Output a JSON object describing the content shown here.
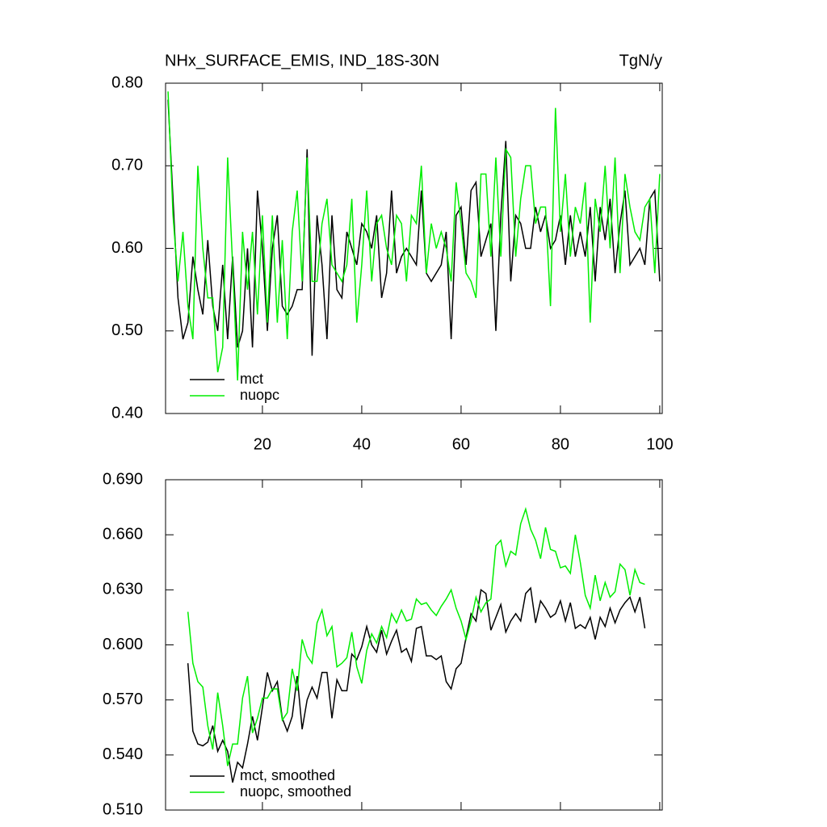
{
  "chart_data": [
    {
      "type": "line",
      "title": "NHx_SURFACE_EMIS, IND_18S-30N",
      "units": "TgN/y",
      "x": [
        1,
        2,
        3,
        4,
        5,
        6,
        7,
        8,
        9,
        10,
        11,
        12,
        13,
        14,
        15,
        16,
        17,
        18,
        19,
        20,
        21,
        22,
        23,
        24,
        25,
        26,
        27,
        28,
        29,
        30,
        31,
        32,
        33,
        34,
        35,
        36,
        37,
        38,
        39,
        40,
        41,
        42,
        43,
        44,
        45,
        46,
        47,
        48,
        49,
        50,
        51,
        52,
        53,
        54,
        55,
        56,
        57,
        58,
        59,
        60,
        61,
        62,
        63,
        64,
        65,
        66,
        67,
        68,
        69,
        70,
        71,
        72,
        73,
        74,
        75,
        76,
        77,
        78,
        79,
        80,
        81,
        82,
        83,
        84,
        85,
        86,
        87,
        88,
        89,
        90,
        91,
        92,
        93,
        94,
        95,
        96,
        97,
        98,
        99,
        100
      ],
      "series": [
        {
          "name": "mct",
          "color": "#000000",
          "values": [
            0.78,
            0.66,
            0.54,
            0.49,
            0.51,
            0.59,
            0.55,
            0.52,
            0.61,
            0.53,
            0.5,
            0.58,
            0.49,
            0.59,
            0.48,
            0.5,
            0.6,
            0.48,
            0.67,
            0.6,
            0.5,
            0.6,
            0.64,
            0.53,
            0.52,
            0.53,
            0.55,
            0.55,
            0.72,
            0.47,
            0.64,
            0.58,
            0.49,
            0.64,
            0.55,
            0.54,
            0.62,
            0.6,
            0.58,
            0.63,
            0.62,
            0.6,
            0.64,
            0.54,
            0.57,
            0.67,
            0.57,
            0.59,
            0.6,
            0.59,
            0.58,
            0.67,
            0.57,
            0.56,
            0.57,
            0.58,
            0.62,
            0.49,
            0.64,
            0.65,
            0.58,
            0.67,
            0.68,
            0.59,
            0.61,
            0.63,
            0.5,
            0.64,
            0.73,
            0.56,
            0.64,
            0.63,
            0.6,
            0.6,
            0.65,
            0.62,
            0.64,
            0.6,
            0.61,
            0.64,
            0.58,
            0.64,
            0.59,
            0.62,
            0.59,
            0.65,
            0.56,
            0.65,
            0.61,
            0.66,
            0.57,
            0.63,
            0.67,
            0.58,
            0.59,
            0.6,
            0.58,
            0.66,
            0.67,
            0.56
          ]
        },
        {
          "name": "nuopc",
          "color": "#00ee00",
          "values": [
            0.79,
            0.64,
            0.56,
            0.62,
            0.53,
            0.49,
            0.7,
            0.6,
            0.54,
            0.54,
            0.45,
            0.48,
            0.71,
            0.58,
            0.44,
            0.62,
            0.55,
            0.62,
            0.52,
            0.64,
            0.51,
            0.64,
            0.51,
            0.61,
            0.49,
            0.62,
            0.67,
            0.56,
            0.71,
            0.56,
            0.56,
            0.63,
            0.66,
            0.58,
            0.57,
            0.56,
            0.58,
            0.66,
            0.51,
            0.58,
            0.67,
            0.56,
            0.63,
            0.64,
            0.6,
            0.58,
            0.64,
            0.63,
            0.56,
            0.64,
            0.63,
            0.7,
            0.57,
            0.63,
            0.6,
            0.62,
            0.6,
            0.56,
            0.68,
            0.63,
            0.57,
            0.56,
            0.54,
            0.69,
            0.69,
            0.59,
            0.71,
            0.59,
            0.72,
            0.71,
            0.59,
            0.66,
            0.7,
            0.7,
            0.63,
            0.65,
            0.65,
            0.53,
            0.77,
            0.62,
            0.69,
            0.59,
            0.65,
            0.63,
            0.68,
            0.51,
            0.66,
            0.62,
            0.7,
            0.6,
            0.71,
            0.57,
            0.69,
            0.65,
            0.62,
            0.61,
            0.65,
            0.66,
            0.57,
            0.69
          ]
        }
      ],
      "xlim": [
        0.5,
        100.5
      ],
      "xticks": [
        20,
        40,
        60,
        80,
        100
      ],
      "ylim": [
        0.4,
        0.8
      ],
      "yticks": [
        {
          "value": 0.4,
          "label": "0.40"
        },
        {
          "value": 0.5,
          "label": "0.50"
        },
        {
          "value": 0.6,
          "label": "0.60"
        },
        {
          "value": 0.7,
          "label": "0.70"
        },
        {
          "value": 0.8,
          "label": "0.80"
        }
      ],
      "legend": "lower left"
    },
    {
      "type": "line",
      "x": [
        5,
        6,
        7,
        8,
        9,
        10,
        11,
        12,
        13,
        14,
        15,
        16,
        17,
        18,
        19,
        20,
        21,
        22,
        23,
        24,
        25,
        26,
        27,
        28,
        29,
        30,
        31,
        32,
        33,
        34,
        35,
        36,
        37,
        38,
        39,
        40,
        41,
        42,
        43,
        44,
        45,
        46,
        47,
        48,
        49,
        50,
        51,
        52,
        53,
        54,
        55,
        56,
        57,
        58,
        59,
        60,
        61,
        62,
        63,
        64,
        65,
        66,
        67,
        68,
        69,
        70,
        71,
        72,
        73,
        74,
        75,
        76,
        77,
        78,
        79,
        80,
        81,
        82,
        83,
        84,
        85,
        86,
        87,
        88,
        89,
        90,
        91,
        92,
        93,
        94,
        95,
        96,
        97
      ],
      "series": [
        {
          "name": "mct, smoothed",
          "color": "#000000",
          "values": [
            0.59,
            0.553,
            0.546,
            0.545,
            0.547,
            0.556,
            0.542,
            0.548,
            0.542,
            0.525,
            0.536,
            0.533,
            0.546,
            0.561,
            0.548,
            0.566,
            0.585,
            0.575,
            0.58,
            0.56,
            0.553,
            0.561,
            0.583,
            0.554,
            0.57,
            0.577,
            0.571,
            0.585,
            0.585,
            0.56,
            0.581,
            0.575,
            0.575,
            0.595,
            0.592,
            0.599,
            0.61,
            0.6,
            0.596,
            0.608,
            0.595,
            0.602,
            0.608,
            0.596,
            0.598,
            0.591,
            0.609,
            0.61,
            0.594,
            0.594,
            0.592,
            0.594,
            0.58,
            0.576,
            0.587,
            0.59,
            0.604,
            0.617,
            0.613,
            0.63,
            0.628,
            0.608,
            0.615,
            0.622,
            0.607,
            0.613,
            0.617,
            0.613,
            0.628,
            0.631,
            0.612,
            0.624,
            0.62,
            0.615,
            0.617,
            0.624,
            0.613,
            0.623,
            0.609,
            0.611,
            0.609,
            0.615,
            0.603,
            0.615,
            0.61,
            0.62,
            0.612,
            0.619,
            0.623,
            0.626,
            0.618,
            0.626,
            0.609
          ]
        },
        {
          "name": "nuopc, smoothed",
          "color": "#00ee00",
          "values": [
            0.618,
            0.59,
            0.58,
            0.577,
            0.556,
            0.543,
            0.574,
            0.556,
            0.534,
            0.546,
            0.546,
            0.571,
            0.583,
            0.552,
            0.56,
            0.571,
            0.571,
            0.576,
            0.576,
            0.559,
            0.563,
            0.587,
            0.575,
            0.603,
            0.594,
            0.59,
            0.612,
            0.619,
            0.605,
            0.61,
            0.588,
            0.59,
            0.593,
            0.607,
            0.588,
            0.579,
            0.597,
            0.606,
            0.601,
            0.61,
            0.604,
            0.617,
            0.612,
            0.619,
            0.613,
            0.614,
            0.625,
            0.622,
            0.623,
            0.619,
            0.616,
            0.621,
            0.625,
            0.63,
            0.62,
            0.613,
            0.603,
            0.613,
            0.626,
            0.618,
            0.623,
            0.625,
            0.654,
            0.657,
            0.643,
            0.651,
            0.649,
            0.666,
            0.674,
            0.663,
            0.657,
            0.647,
            0.664,
            0.652,
            0.651,
            0.642,
            0.643,
            0.639,
            0.66,
            0.645,
            0.627,
            0.62,
            0.638,
            0.624,
            0.634,
            0.626,
            0.629,
            0.644,
            0.641,
            0.627,
            0.641,
            0.634,
            0.633
          ]
        }
      ],
      "xlim": [
        0.5,
        100.5
      ],
      "xticks": [
        20,
        40,
        60,
        80,
        100
      ],
      "ylim": [
        0.51,
        0.69
      ],
      "yticks": [
        {
          "value": 0.51,
          "label": "0.510"
        },
        {
          "value": 0.54,
          "label": "0.540"
        },
        {
          "value": 0.57,
          "label": "0.570"
        },
        {
          "value": 0.6,
          "label": "0.600"
        },
        {
          "value": 0.63,
          "label": "0.630"
        },
        {
          "value": 0.66,
          "label": "0.660"
        },
        {
          "value": 0.69,
          "label": "0.690"
        }
      ],
      "legend": "lower left"
    }
  ]
}
